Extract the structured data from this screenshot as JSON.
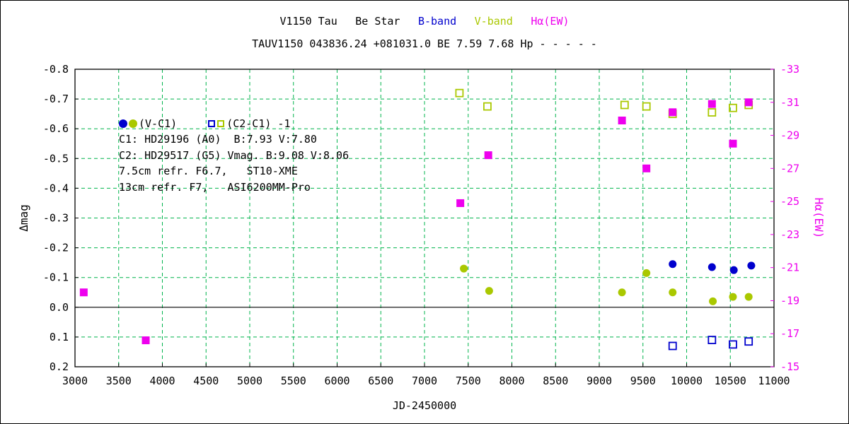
{
  "colors": {
    "b_band": "#0000cd",
    "v_band": "#aac800",
    "halpha": "#ee00ee",
    "grid": "#00b44c",
    "axis": "#000000",
    "background": "#ffffff"
  },
  "title": {
    "parts": [
      {
        "text": "V1150 Tau",
        "color": "#000000"
      },
      {
        "text": "Be Star",
        "color": "#000000"
      },
      {
        "text": "B-band",
        "color": "#0000cd"
      },
      {
        "text": "V-band",
        "color": "#aac800"
      },
      {
        "text": "Hα(EW)",
        "color": "#ee00ee"
      }
    ],
    "subtitle": "TAUV1150 043836.24 +081031.0 BE 7.59 7.68 Hp - - - - -"
  },
  "annotation": {
    "legend_vc1": "(V-C1)",
    "legend_c2c1": "(C2-C1) -1",
    "lines": [
      "C1: HD29196 (A0)  B:7.93 V:7.80",
      "C2: HD29517 (G5) Vmag. B:9.08 V:8.06",
      "7.5cm refr. F6.7,   ST10-XME",
      "13cm refr. F7,   ASI6200MM-Pro"
    ]
  },
  "chart_data": {
    "type": "scatter",
    "title": "V1150 Tau Be Star — B-band, V-band, Hα(EW) light curve",
    "xlabel": "JD-2450000",
    "ylabel_left": "Δmag",
    "ylabel_right": "Hα(EW)",
    "xlim": [
      3000,
      11000
    ],
    "ylim_left": [
      -0.8,
      0.2
    ],
    "ylim_right": [
      -33,
      -15
    ],
    "x_ticks": [
      3000,
      3500,
      4000,
      4500,
      5000,
      5500,
      6000,
      6500,
      7000,
      7500,
      8000,
      8500,
      9000,
      9500,
      10000,
      10500,
      11000
    ],
    "y_ticks_left": [
      -0.8,
      -0.7,
      -0.6,
      -0.5,
      -0.4,
      -0.3,
      -0.2,
      -0.1,
      0,
      0.1,
      0.2
    ],
    "y_ticks_right": [
      -33,
      -31,
      -29,
      -27,
      -25,
      -23,
      -21,
      -19,
      -17,
      -15
    ],
    "grid": "dashed-green",
    "zero_line": 0,
    "legend_position": "inside-top-left",
    "series": [
      {
        "name": "V-band (C2-C1)-1",
        "marker": "open-square",
        "axis": "left",
        "color": "#aac800",
        "points": [
          [
            7400,
            -0.72
          ],
          [
            7720,
            -0.675
          ],
          [
            9290,
            -0.68
          ],
          [
            9540,
            -0.675
          ],
          [
            9840,
            -0.65
          ],
          [
            10290,
            -0.655
          ],
          [
            10530,
            -0.67
          ],
          [
            10710,
            -0.68
          ]
        ]
      },
      {
        "name": "Hα(EW)",
        "marker": "filled-square",
        "axis": "right",
        "color": "#ee00ee",
        "points": [
          [
            3100,
            -19.5
          ],
          [
            3810,
            -16.6
          ],
          [
            7410,
            -24.9
          ],
          [
            7730,
            -27.8
          ],
          [
            9260,
            -29.9
          ],
          [
            9540,
            -27.0
          ],
          [
            9840,
            -30.4
          ],
          [
            10290,
            -30.9
          ],
          [
            10530,
            -28.5
          ],
          [
            10710,
            -31.0
          ]
        ]
      },
      {
        "name": "B-band (V-C1)",
        "marker": "filled-circle",
        "axis": "left",
        "color": "#0000cd",
        "points": [
          [
            9840,
            -0.145
          ],
          [
            10290,
            -0.135
          ],
          [
            10540,
            -0.125
          ],
          [
            10740,
            -0.14
          ]
        ]
      },
      {
        "name": "V-band (V-C1)",
        "marker": "filled-circle",
        "axis": "left",
        "color": "#aac800",
        "points": [
          [
            7450,
            -0.13
          ],
          [
            7740,
            -0.055
          ],
          [
            9260,
            -0.05
          ],
          [
            9540,
            -0.115
          ],
          [
            9840,
            -0.05
          ],
          [
            10300,
            -0.02
          ],
          [
            10530,
            -0.035
          ],
          [
            10710,
            -0.035
          ]
        ]
      },
      {
        "name": "B-band (C2-C1)-1",
        "marker": "open-square",
        "axis": "left",
        "color": "#0000cd",
        "points": [
          [
            9840,
            0.13
          ],
          [
            10290,
            0.11
          ],
          [
            10530,
            0.125
          ],
          [
            10710,
            0.115
          ]
        ]
      }
    ]
  }
}
